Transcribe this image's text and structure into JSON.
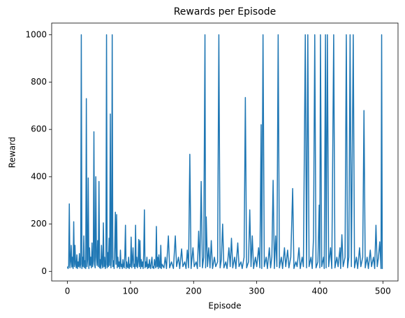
{
  "chart_data": {
    "type": "line",
    "title": "Rewards per Episode",
    "x_label": "Episode",
    "y_label": "Reward",
    "x": [
      0,
      1,
      2,
      3,
      4,
      5,
      6,
      7,
      8,
      9,
      10,
      11,
      12,
      13,
      14,
      15,
      16,
      17,
      18,
      19,
      20,
      21,
      22,
      23,
      24,
      25,
      26,
      27,
      28,
      29,
      30,
      31,
      32,
      33,
      34,
      35,
      36,
      37,
      38,
      39,
      40,
      41,
      42,
      43,
      44,
      45,
      46,
      47,
      48,
      49,
      50,
      51,
      52,
      53,
      54,
      55,
      56,
      57,
      58,
      59,
      60,
      61,
      62,
      63,
      64,
      65,
      66,
      67,
      68,
      69,
      70,
      71,
      72,
      73,
      74,
      75,
      76,
      77,
      78,
      79,
      80,
      81,
      82,
      83,
      84,
      85,
      86,
      87,
      88,
      89,
      90,
      91,
      92,
      93,
      94,
      95,
      96,
      97,
      98,
      99,
      100,
      101,
      102,
      103,
      104,
      105,
      106,
      107,
      108,
      109,
      110,
      111,
      112,
      113,
      114,
      115,
      116,
      117,
      118,
      119,
      120,
      121,
      122,
      123,
      124,
      125,
      126,
      127,
      128,
      129,
      130,
      131,
      132,
      133,
      134,
      135,
      136,
      137,
      138,
      139,
      140,
      141,
      142,
      143,
      144,
      145,
      146,
      147,
      148,
      149,
      150,
      153,
      155,
      157,
      160,
      162,
      165,
      168,
      171,
      173,
      176,
      178,
      181,
      183,
      186,
      188,
      190,
      192,
      194,
      196,
      199,
      201,
      204,
      206,
      208,
      210,
      212,
      214,
      216,
      218,
      219,
      220,
      222,
      224,
      226,
      228,
      230,
      233,
      235,
      238,
      240,
      242,
      244,
      246,
      248,
      251,
      253,
      256,
      258,
      260,
      262,
      265,
      267,
      270,
      272,
      275,
      277,
      280,
      282,
      284,
      287,
      289,
      291,
      293,
      295,
      298,
      300,
      303,
      305,
      307,
      308,
      310,
      312,
      315,
      317,
      320,
      322,
      324,
      326,
      328,
      330,
      332,
      334,
      336,
      339,
      341,
      344,
      346,
      349,
      351,
      354,
      357,
      359,
      362,
      364,
      367,
      369,
      372,
      374,
      377,
      379,
      381,
      383,
      386,
      388,
      390,
      392,
      394,
      397,
      399,
      400,
      401,
      403,
      406,
      407,
      409,
      410,
      412,
      414,
      417,
      419,
      422,
      424,
      427,
      429,
      432,
      433,
      435,
      437,
      440,
      442,
      444,
      446,
      448,
      450,
      453,
      455,
      458,
      460,
      463,
      465,
      468,
      470,
      472,
      475,
      477,
      480,
      482,
      485,
      487,
      489,
      491,
      493,
      495,
      497,
      498,
      499
    ],
    "series": [
      {
        "color": "#1f77b4",
        "values": [
          20,
          12,
          25,
          285,
          15,
          40,
          110,
          18,
          60,
          12,
          210,
          20,
          110,
          30,
          15,
          70,
          12,
          40,
          20,
          75,
          15,
          30,
          1000,
          12,
          60,
          20,
          150,
          15,
          45,
          12,
          730,
          20,
          50,
          395,
          12,
          100,
          25,
          60,
          15,
          120,
          20,
          45,
          590,
          30,
          15,
          400,
          60,
          25,
          130,
          20,
          380,
          15,
          50,
          12,
          110,
          30,
          15,
          205,
          20,
          60,
          12,
          30,
          1000,
          15,
          80,
          20,
          140,
          25,
          665,
          15,
          60,
          1000,
          20,
          45,
          12,
          100,
          250,
          30,
          240,
          15,
          60,
          20,
          40,
          12,
          90,
          20,
          30,
          12,
          50,
          20,
          15,
          70,
          195,
          12,
          40,
          20,
          15,
          60,
          12,
          30,
          20,
          145,
          15,
          50,
          100,
          20,
          30,
          12,
          195,
          20,
          60,
          15,
          40,
          135,
          20,
          130,
          12,
          50,
          20,
          40,
          12,
          80,
          260,
          15,
          40,
          20,
          60,
          12,
          30,
          15,
          50,
          20,
          12,
          40,
          60,
          15,
          20,
          12,
          50,
          30,
          15,
          190,
          20,
          60,
          12,
          70,
          20,
          15,
          110,
          12,
          30,
          15,
          60,
          12,
          150,
          15,
          40,
          12,
          150,
          20,
          60,
          12,
          95,
          20,
          40,
          12,
          90,
          15,
          495,
          12,
          100,
          20,
          40,
          12,
          170,
          20,
          380,
          15,
          60,
          1000,
          15,
          230,
          20,
          100,
          15,
          130,
          12,
          60,
          20,
          40,
          1000,
          15,
          50,
          200,
          15,
          40,
          12,
          100,
          20,
          140,
          15,
          60,
          12,
          120,
          20,
          40,
          12,
          60,
          735,
          15,
          40,
          260,
          20,
          150,
          12,
          60,
          20,
          100,
          15,
          620,
          12,
          1000,
          20,
          60,
          12,
          100,
          15,
          60,
          385,
          12,
          150,
          20,
          1000,
          15,
          60,
          12,
          100,
          20,
          90,
          15,
          60,
          350,
          12,
          40,
          20,
          100,
          12,
          60,
          20,
          1000,
          15,
          1000,
          20,
          60,
          12,
          140,
          1000,
          15,
          40,
          280,
          15,
          1000,
          20,
          60,
          12,
          1000,
          15,
          1000,
          20,
          100,
          12,
          1000,
          15,
          60,
          20,
          100,
          12,
          155,
          20,
          60,
          1000,
          15,
          60,
          1000,
          20,
          1000,
          15,
          60,
          12,
          100,
          20,
          60,
          680,
          15,
          60,
          12,
          90,
          20,
          60,
          12,
          195,
          20,
          60,
          125,
          12,
          1000,
          10
        ]
      }
    ],
    "xlim": [
      -24.95,
      523.95
    ],
    "xticks": [
      0,
      100,
      200,
      300,
      400,
      500
    ],
    "ylim": [
      -40.5,
      1049.5
    ],
    "yticks": [
      0,
      200,
      400,
      600,
      800,
      1000
    ],
    "grid": false
  }
}
